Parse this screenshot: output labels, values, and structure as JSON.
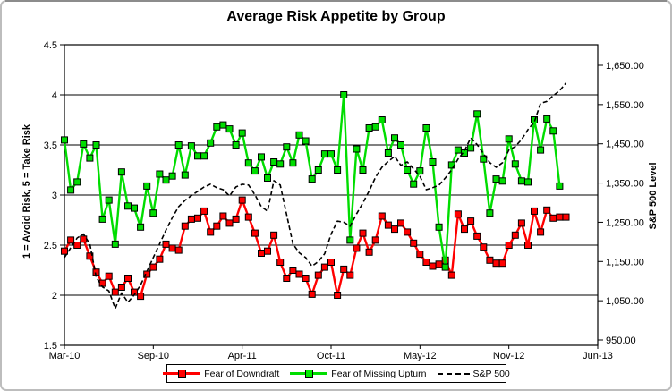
{
  "window": {
    "accent_red": "#ff0000",
    "accent_green": "#00dd00",
    "frame_color": "#bdbdbd"
  },
  "chart_data": {
    "type": "line",
    "title": "Average Risk Appetite by Group",
    "slots": 85,
    "grid": "horizontal-on",
    "legend_position": "bottom",
    "y_left": {
      "label": "1 = Avoid Risk, 5 = Take Risk",
      "min": 1.5,
      "max": 4.5,
      "ticks": [
        {
          "value": 4.5,
          "label": "4.5"
        },
        {
          "value": 4.0,
          "label": "4"
        },
        {
          "value": 3.5,
          "label": "3.5"
        },
        {
          "value": 3.0,
          "label": "3"
        },
        {
          "value": 2.5,
          "label": "2.5"
        },
        {
          "value": 2.0,
          "label": "2"
        },
        {
          "value": 1.5,
          "label": "1.5"
        }
      ]
    },
    "y_right": {
      "label": "S&P 500 Level",
      "min": 950,
      "max": 1650,
      "ticks": [
        {
          "value": 1650,
          "label": "1,650.00"
        },
        {
          "value": 1550,
          "label": "1,550.00"
        },
        {
          "value": 1450,
          "label": "1,450.00"
        },
        {
          "value": 1350,
          "label": "1,350.00"
        },
        {
          "value": 1250,
          "label": "1,250.00"
        },
        {
          "value": 1150,
          "label": "1,150.00"
        },
        {
          "value": 1050,
          "label": "1,050.00"
        },
        {
          "value": 950,
          "label": "950.00"
        }
      ]
    },
    "x_labels": [
      {
        "label": "Mar-10",
        "slot": 0
      },
      {
        "label": "Sep-10",
        "slot": 14
      },
      {
        "label": "Apr-11",
        "slot": 28
      },
      {
        "label": "Oct-11",
        "slot": 42
      },
      {
        "label": "May-12",
        "slot": 56
      },
      {
        "label": "Nov-12",
        "slot": 70
      },
      {
        "label": "Jun-13",
        "slot": 84
      }
    ],
    "series": [
      {
        "name": "Fear of Downdraft",
        "color": "#ff0000",
        "marker": "square",
        "line_style": "solid",
        "axis": "left",
        "values": [
          2.44,
          2.55,
          2.5,
          2.56,
          2.39,
          2.23,
          2.12,
          2.19,
          2.03,
          2.08,
          2.17,
          2.03,
          1.99,
          2.21,
          2.28,
          2.36,
          2.51,
          2.47,
          2.45,
          2.69,
          2.76,
          2.77,
          2.84,
          2.63,
          2.69,
          2.79,
          2.72,
          2.76,
          2.95,
          2.78,
          2.62,
          2.42,
          2.44,
          2.6,
          2.33,
          2.17,
          2.25,
          2.21,
          2.17,
          2.01,
          2.2,
          2.28,
          2.33,
          2.0,
          2.26,
          2.2,
          2.47,
          2.62,
          2.43,
          2.55,
          2.79,
          2.7,
          2.66,
          2.72,
          2.63,
          2.52,
          2.41,
          2.33,
          2.29,
          2.31,
          2.35,
          2.2,
          2.81,
          2.66,
          2.74,
          2.59,
          2.48,
          2.35,
          2.32,
          2.32,
          2.5,
          2.6,
          2.72,
          2.5,
          2.84,
          2.63,
          2.85,
          2.77,
          2.78,
          2.78
        ]
      },
      {
        "name": "Fear of Missing Upturn",
        "color": "#00dd00",
        "marker": "square",
        "line_style": "solid",
        "axis": "left",
        "values": [
          3.55,
          3.05,
          3.13,
          3.51,
          3.37,
          3.5,
          2.76,
          2.95,
          2.51,
          3.23,
          2.89,
          2.87,
          2.68,
          3.09,
          2.82,
          3.21,
          3.15,
          3.19,
          3.5,
          3.2,
          3.49,
          3.39,
          3.39,
          3.52,
          3.68,
          3.7,
          3.66,
          3.5,
          3.62,
          3.32,
          3.24,
          3.38,
          3.17,
          3.33,
          3.31,
          3.48,
          3.32,
          3.6,
          3.54,
          3.16,
          3.25,
          3.41,
          3.41,
          3.25,
          4.0,
          2.55,
          3.46,
          3.25,
          3.67,
          3.68,
          3.75,
          3.42,
          3.57,
          3.5,
          3.25,
          3.11,
          3.24,
          3.67,
          3.33,
          2.68,
          2.28,
          3.3,
          3.45,
          3.42,
          3.47,
          3.81,
          3.36,
          2.82,
          3.16,
          3.14,
          3.56,
          3.31,
          3.14,
          3.13,
          3.75,
          3.45,
          3.76,
          3.64,
          3.09
        ]
      },
      {
        "name": "S&P 500",
        "color": "#000000",
        "marker": "none",
        "line_style": "dashed",
        "axis": "right",
        "values": [
          1160,
          1185,
          1210,
          1220,
          1195,
          1110,
          1085,
          1075,
          1030,
          1070,
          1046,
          1065,
          1090,
          1125,
          1160,
          1195,
          1230,
          1262,
          1290,
          1306,
          1318,
          1329,
          1340,
          1347,
          1338,
          1333,
          1317,
          1340,
          1347,
          1345,
          1320,
          1290,
          1278,
          1356,
          1345,
          1270,
          1195,
          1172,
          1160,
          1138,
          1150,
          1170,
          1220,
          1253,
          1250,
          1240,
          1271,
          1299,
          1330,
          1365,
          1390,
          1405,
          1418,
          1395,
          1404,
          1386,
          1367,
          1333,
          1338,
          1345,
          1363,
          1384,
          1411,
          1432,
          1465,
          1448,
          1425,
          1402,
          1390,
          1402,
          1434,
          1443,
          1461,
          1486,
          1505,
          1553,
          1558,
          1573,
          1585,
          1605
        ]
      }
    ]
  }
}
